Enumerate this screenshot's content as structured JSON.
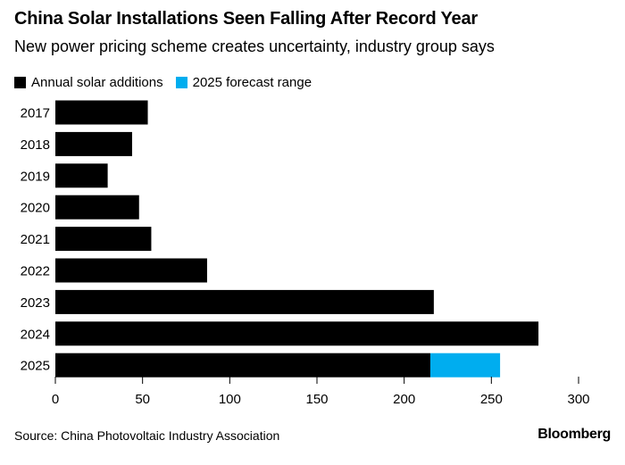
{
  "chart_data": {
    "type": "bar",
    "orientation": "horizontal",
    "title": "China Solar Installations Seen Falling After Record Year",
    "subtitle": "New power pricing scheme creates uncertainty, industry group says",
    "categories": [
      "2017",
      "2018",
      "2019",
      "2020",
      "2021",
      "2022",
      "2023",
      "2024",
      "2025"
    ],
    "series": [
      {
        "name": "Annual solar additions",
        "color": "#000000",
        "values": [
          53,
          44,
          30,
          48,
          55,
          87,
          217,
          277,
          215
        ]
      },
      {
        "name": "2025 forecast range",
        "color": "#00adef",
        "values": [
          0,
          0,
          0,
          0,
          0,
          0,
          0,
          0,
          40
        ]
      }
    ],
    "stacked": true,
    "xlim": [
      0,
      300
    ],
    "xticks": [
      0,
      50,
      100,
      150,
      200,
      250,
      300
    ],
    "xlabel": "",
    "ylabel": "",
    "grid": false,
    "legend_position": "top-left"
  },
  "footer": {
    "source": "Source: China Photovoltaic Industry Association",
    "brand": "Bloomberg"
  }
}
